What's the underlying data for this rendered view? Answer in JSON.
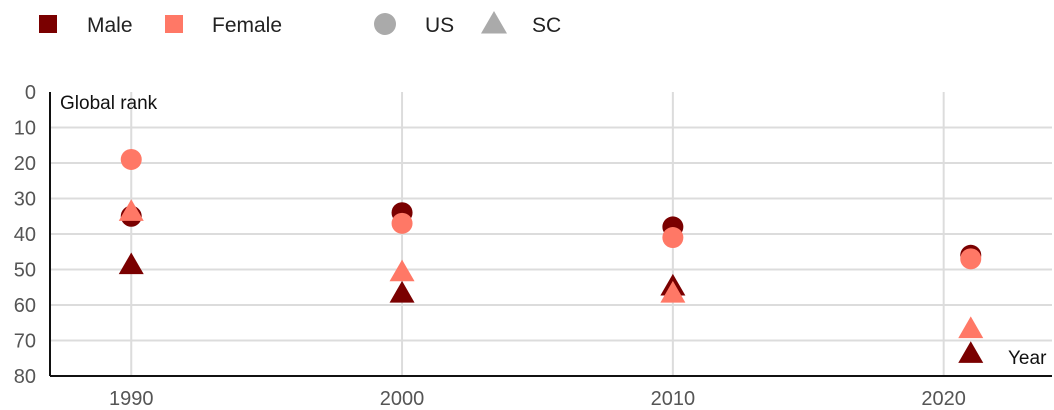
{
  "chart_data": {
    "type": "scatter",
    "xlabel": "Year",
    "ylabel": "Global rank",
    "x_ticks": [
      1990,
      2000,
      2010,
      2020
    ],
    "y_ticks": [
      0,
      10,
      20,
      30,
      40,
      50,
      60,
      70,
      80
    ],
    "xlim": [
      1987,
      2024
    ],
    "ylim": [
      80,
      0
    ],
    "y_reversed": true,
    "grid": true,
    "legend": {
      "placement": "top-left",
      "color_entries": [
        {
          "label": "Male",
          "color": "#7a0000"
        },
        {
          "label": "Female",
          "color": "#ff7866"
        }
      ],
      "shape_entries": [
        {
          "label": "US",
          "shape": "circle"
        },
        {
          "label": "SC",
          "shape": "triangle"
        }
      ],
      "key_color": "#aaaaaa"
    },
    "series": [
      {
        "sex": "Male",
        "region": "US",
        "shape": "circle",
        "color": "#7a0000",
        "points": [
          {
            "x": 1990,
            "y": 35
          },
          {
            "x": 2000,
            "y": 34
          },
          {
            "x": 2010,
            "y": 38
          },
          {
            "x": 2021,
            "y": 46
          }
        ]
      },
      {
        "sex": "Male",
        "region": "SC",
        "shape": "triangle",
        "color": "#7a0000",
        "points": [
          {
            "x": 1990,
            "y": 49
          },
          {
            "x": 2000,
            "y": 57
          },
          {
            "x": 2010,
            "y": 55
          },
          {
            "x": 2021,
            "y": 74
          }
        ]
      },
      {
        "sex": "Female",
        "region": "US",
        "shape": "circle",
        "color": "#ff7866",
        "points": [
          {
            "x": 1990,
            "y": 19
          },
          {
            "x": 2000,
            "y": 37
          },
          {
            "x": 2010,
            "y": 41
          },
          {
            "x": 2021,
            "y": 47
          }
        ]
      },
      {
        "sex": "Female",
        "region": "SC",
        "shape": "triangle",
        "color": "#ff7866",
        "points": [
          {
            "x": 1990,
            "y": 34
          },
          {
            "x": 2000,
            "y": 51
          },
          {
            "x": 2010,
            "y": 57
          },
          {
            "x": 2021,
            "y": 67
          }
        ]
      }
    ]
  }
}
